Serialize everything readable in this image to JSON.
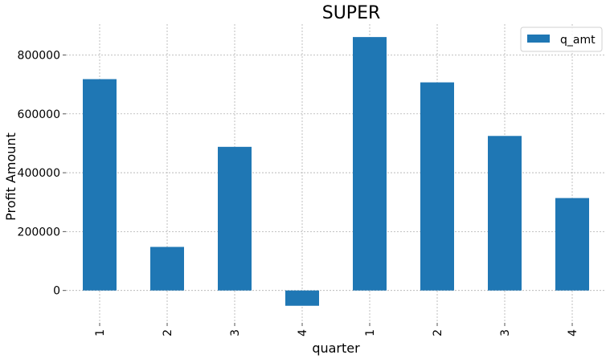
{
  "chart_data": {
    "type": "bar",
    "title": "SUPER",
    "xlabel": "quarter",
    "ylabel": "Profit Amount",
    "categories": [
      "1",
      "2",
      "3",
      "4",
      "1",
      "2",
      "3",
      "4"
    ],
    "series": [
      {
        "name": "q_amt",
        "color": "#1f77b4",
        "values": [
          718000,
          148000,
          488000,
          -52000,
          861000,
          707000,
          525000,
          314000
        ]
      }
    ],
    "yticks": [
      0,
      200000,
      400000,
      600000,
      800000
    ],
    "ytick_labels": [
      "0",
      "200000",
      "400000",
      "600000",
      "800000"
    ],
    "ylim": [
      -110000,
      905000
    ],
    "grid": true,
    "legend_position": "top-right",
    "xtick_rotation": 90
  }
}
